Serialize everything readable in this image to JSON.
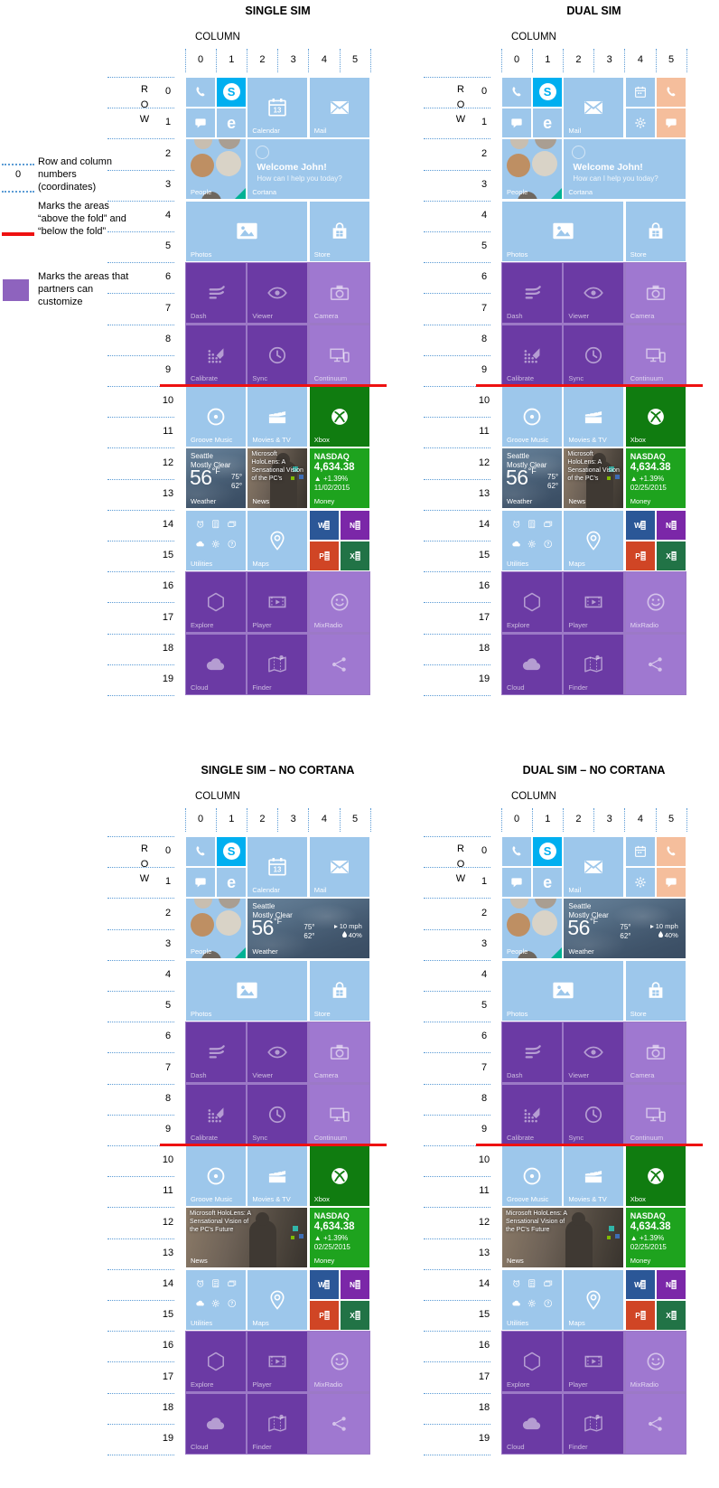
{
  "legend": {
    "coordinate_sample": "0",
    "items": [
      {
        "name": "coordinates",
        "text": "Row and column numbers (coordinates)"
      },
      {
        "name": "fold",
        "text": "Marks the areas “above the fold” and “below the fold”"
      },
      {
        "name": "partner",
        "text": "Marks the areas that partners can customize"
      }
    ]
  },
  "axis": {
    "column_label": "COLUMN",
    "row_label": "ROW",
    "columns": [
      "0",
      "1",
      "2",
      "3",
      "4",
      "5"
    ],
    "rows": [
      "0",
      "1",
      "2",
      "3",
      "4",
      "5",
      "6",
      "7",
      "8",
      "9",
      "10",
      "11",
      "12",
      "13",
      "14",
      "15",
      "16",
      "17",
      "18",
      "19"
    ]
  },
  "fold_after_row": 9,
  "partner_areas": [
    {
      "from_row": 6,
      "to_row": 9
    },
    {
      "from_row": 16,
      "to_row": 19
    }
  ],
  "palette": {
    "tile_blue": "#9DC7EB",
    "skype_blue": "#00AFF0",
    "peach": "#F5BE9C",
    "xbox_green": "#107C10",
    "money_green": "#1EA31E",
    "purple_area": "#9C79C6",
    "purple_tile": "#6B3AA4",
    "purple_tile_light": "#9F78D0",
    "word_blue": "#2B5797",
    "onenote_purple": "#7B27A8",
    "powerpoint_red": "#D04525",
    "excel_green": "#217346",
    "fold_red": "#EE1111",
    "dotted_blue": "#5B9BD5",
    "legend_purple": "#8E63BE"
  },
  "tile_library": {
    "phone": {
      "name": "phone",
      "row": 0,
      "col": 0,
      "rows": 1,
      "cols": 1,
      "color": "tile_blue",
      "icon": "phone"
    },
    "skype": {
      "name": "skype",
      "row": 0,
      "col": 1,
      "rows": 1,
      "cols": 1,
      "color": "skype_blue",
      "kind": "badge",
      "letter": "S"
    },
    "messaging": {
      "name": "messaging",
      "row": 1,
      "col": 0,
      "rows": 1,
      "cols": 1,
      "color": "tile_blue",
      "icon": "message"
    },
    "edge": {
      "name": "edge",
      "row": 1,
      "col": 1,
      "rows": 1,
      "cols": 1,
      "color": "tile_blue",
      "kind": "letter",
      "letter": "e"
    },
    "calendar_lg": {
      "name": "calendar",
      "label": "Calendar",
      "row": 0,
      "col": 2,
      "rows": 2,
      "cols": 2,
      "color": "tile_blue",
      "icon": "calendar",
      "day": "13"
    },
    "mail_lg_right": {
      "name": "mail",
      "label": "Mail",
      "row": 0,
      "col": 4,
      "rows": 2,
      "cols": 2,
      "color": "tile_blue",
      "icon": "mail"
    },
    "mail_lg_mid": {
      "name": "mail",
      "label": "Mail",
      "row": 0,
      "col": 2,
      "rows": 2,
      "cols": 2,
      "color": "tile_blue",
      "icon": "mail"
    },
    "calendar_sm": {
      "name": "calendar-small",
      "row": 0,
      "col": 4,
      "rows": 1,
      "cols": 1,
      "color": "tile_blue",
      "icon": "mini-calendar"
    },
    "settings_sm": {
      "name": "settings",
      "row": 1,
      "col": 4,
      "rows": 1,
      "cols": 1,
      "color": "tile_blue",
      "icon": "gear"
    },
    "phone_sim2": {
      "name": "phone-sim2",
      "row": 0,
      "col": 5,
      "rows": 1,
      "cols": 1,
      "color": "peach",
      "icon": "phone"
    },
    "messaging_sim2": {
      "name": "messaging-sim2",
      "row": 1,
      "col": 5,
      "rows": 1,
      "cols": 1,
      "color": "peach",
      "icon": "message"
    },
    "people": {
      "name": "people",
      "label": "People",
      "kind": "people",
      "row": 2,
      "col": 0,
      "rows": 2,
      "cols": 2,
      "color": "tile_blue"
    },
    "cortana": {
      "name": "cortana",
      "label": "Cortana",
      "kind": "cortana",
      "greeting": "Welcome John!",
      "prompt": "How can I help you today?",
      "row": 2,
      "col": 2,
      "rows": 2,
      "cols": 4,
      "color": "tile_blue"
    },
    "weather_wide": {
      "name": "weather",
      "label": "Weather",
      "kind": "weather",
      "row": 2,
      "col": 2,
      "rows": 2,
      "cols": 4,
      "city": "Seattle",
      "condition": "Mostly Clear",
      "temp": "56",
      "temp_unit": "°F",
      "high": "75°",
      "low": "62°",
      "wind": "10 mph",
      "humidity": "40%"
    },
    "photos": {
      "name": "photos",
      "label": "Photos",
      "row": 4,
      "col": 0,
      "rows": 2,
      "cols": 4,
      "color": "tile_blue",
      "icon": "photos"
    },
    "store": {
      "name": "store",
      "label": "Store",
      "row": 4,
      "col": 4,
      "rows": 2,
      "cols": 2,
      "color": "tile_blue",
      "icon": "store"
    },
    "dash": {
      "name": "dash",
      "label": "Dash",
      "row": 6,
      "col": 0,
      "rows": 2,
      "cols": 2,
      "color": "purple_tile",
      "icon": "dash"
    },
    "viewer": {
      "name": "viewer",
      "label": "Viewer",
      "row": 6,
      "col": 2,
      "rows": 2,
      "cols": 2,
      "color": "purple_tile",
      "icon": "eye"
    },
    "camera": {
      "name": "camera",
      "label": "Camera",
      "row": 6,
      "col": 4,
      "rows": 2,
      "cols": 2,
      "color": "purple_tile_light",
      "icon": "camera"
    },
    "calibrate": {
      "name": "calibrate",
      "label": "Calibrate",
      "row": 8,
      "col": 0,
      "rows": 2,
      "cols": 2,
      "color": "purple_tile",
      "icon": "calibrate"
    },
    "sync": {
      "name": "sync",
      "label": "Sync",
      "row": 8,
      "col": 2,
      "rows": 2,
      "cols": 2,
      "color": "purple_tile",
      "icon": "sync"
    },
    "continuum": {
      "name": "continuum",
      "label": "Continuum",
      "row": 8,
      "col": 4,
      "rows": 2,
      "cols": 2,
      "color": "purple_tile_light",
      "icon": "continuum"
    },
    "groove": {
      "name": "groove-music",
      "label": "Groove Music",
      "row": 10,
      "col": 0,
      "rows": 2,
      "cols": 2,
      "color": "tile_blue",
      "icon": "groove"
    },
    "movies": {
      "name": "movies-tv",
      "label": "Movies & TV",
      "row": 10,
      "col": 2,
      "rows": 2,
      "cols": 2,
      "color": "tile_blue",
      "icon": "movies"
    },
    "xbox": {
      "name": "xbox",
      "label": "Xbox",
      "row": 10,
      "col": 4,
      "rows": 2,
      "cols": 2,
      "color": "xbox_green",
      "icon": "xbox"
    },
    "weather_sq": {
      "name": "weather",
      "label": "Weather",
      "kind": "weather",
      "row": 12,
      "col": 0,
      "rows": 2,
      "cols": 2,
      "city": "Seattle",
      "condition": "Mostly Clear",
      "temp": "56",
      "temp_unit": "°F",
      "high": "75°",
      "low": "62°"
    },
    "news_sq": {
      "name": "news",
      "label": "News",
      "kind": "news",
      "row": 12,
      "col": 2,
      "rows": 2,
      "cols": 2,
      "headline": "Microsoft HoloLens: A Sensational Vision of the PC's"
    },
    "news_wide": {
      "name": "news",
      "label": "News",
      "kind": "news",
      "row": 12,
      "col": 0,
      "rows": 2,
      "cols": 4,
      "headline": "Microsoft HoloLens: A Sensational Vision of the PC's Future"
    },
    "money": {
      "name": "money",
      "label": "Money",
      "kind": "money",
      "row": 12,
      "col": 4,
      "rows": 2,
      "cols": 2,
      "color": "money_green",
      "index_name": "NASDAQ",
      "value": "4,634.38",
      "change": "▲ +1.39%",
      "date": "02/25/2015"
    },
    "utilities": {
      "name": "utilities",
      "label": "Utilities",
      "kind": "utilities",
      "row": 14,
      "col": 0,
      "rows": 2,
      "cols": 2,
      "color": "tile_blue",
      "icons": [
        "alarm",
        "calculator",
        "wallet",
        "cloud-mini",
        "gear",
        "help"
      ]
    },
    "maps": {
      "name": "maps",
      "label": "Maps",
      "row": 14,
      "col": 2,
      "rows": 2,
      "cols": 2,
      "color": "tile_blue",
      "icon": "maps"
    },
    "word": {
      "name": "word",
      "kind": "office",
      "letter": "W",
      "row": 14,
      "col": 4,
      "rows": 1,
      "cols": 1,
      "color": "word_blue"
    },
    "onenote": {
      "name": "onenote",
      "kind": "office",
      "letter": "N",
      "row": 14,
      "col": 5,
      "rows": 1,
      "cols": 1,
      "color": "onenote_purple"
    },
    "powerpoint": {
      "name": "powerpoint",
      "kind": "office",
      "letter": "P",
      "row": 15,
      "col": 4,
      "rows": 1,
      "cols": 1,
      "color": "powerpoint_red"
    },
    "excel": {
      "name": "excel",
      "kind": "office",
      "letter": "X",
      "row": 15,
      "col": 5,
      "rows": 1,
      "cols": 1,
      "color": "excel_green"
    },
    "explore": {
      "name": "explore",
      "label": "Explore",
      "row": 16,
      "col": 0,
      "rows": 2,
      "cols": 2,
      "color": "purple_tile",
      "icon": "cube"
    },
    "player": {
      "name": "player",
      "label": "Player",
      "row": 16,
      "col": 2,
      "rows": 2,
      "cols": 2,
      "color": "purple_tile",
      "icon": "player"
    },
    "mixradio": {
      "name": "mixradio",
      "label": "MixRadio",
      "row": 16,
      "col": 4,
      "rows": 2,
      "cols": 2,
      "color": "purple_tile_light",
      "icon": "smiley"
    },
    "cloud": {
      "name": "cloud",
      "label": "Cloud",
      "row": 18,
      "col": 0,
      "rows": 2,
      "cols": 2,
      "color": "purple_tile",
      "icon": "cloud"
    },
    "finder": {
      "name": "finder",
      "label": "Finder",
      "row": 18,
      "col": 2,
      "rows": 2,
      "cols": 2,
      "color": "purple_tile",
      "icon": "finder"
    },
    "partner_blank": {
      "name": "partner-tile",
      "row": 18,
      "col": 4,
      "rows": 2,
      "cols": 2,
      "color": "purple_tile_light",
      "icon": "share"
    }
  },
  "grids": [
    {
      "title": "SINGLE SIM",
      "tiles": [
        "phone",
        "skype",
        "messaging",
        "edge",
        "calendar_lg",
        "mail_lg_right",
        "people",
        "cortana",
        "photos",
        "store",
        "dash",
        "viewer",
        "camera",
        "calibrate",
        "sync",
        "continuum",
        "groove",
        "movies",
        "xbox",
        "weather_sq",
        "news_sq",
        {
          "ref": "money",
          "date": "11/02/2015"
        },
        "utilities",
        "maps",
        "word",
        "onenote",
        "powerpoint",
        "excel",
        "explore",
        "player",
        "mixradio",
        "cloud",
        "finder",
        "partner_blank"
      ]
    },
    {
      "title": "DUAL SIM",
      "tiles": [
        "phone",
        "skype",
        "messaging",
        "edge",
        "mail_lg_mid",
        "calendar_sm",
        "settings_sm",
        "phone_sim2",
        "messaging_sim2",
        "people",
        "cortana",
        "photos",
        "store",
        "dash",
        "viewer",
        "camera",
        "calibrate",
        "sync",
        "continuum",
        "groove",
        "movies",
        "xbox",
        "weather_sq",
        "news_sq",
        "money",
        "utilities",
        "maps",
        "word",
        "onenote",
        "powerpoint",
        "excel",
        "explore",
        "player",
        "mixradio",
        "cloud",
        "finder",
        "partner_blank"
      ]
    },
    {
      "title": "SINGLE SIM – NO CORTANA",
      "tiles": [
        "phone",
        "skype",
        "messaging",
        "edge",
        "calendar_lg",
        "mail_lg_right",
        "people",
        "weather_wide",
        "photos",
        "store",
        "dash",
        "viewer",
        "camera",
        "calibrate",
        "sync",
        "continuum",
        "groove",
        "movies",
        "xbox",
        "news_wide",
        "money",
        "utilities",
        "maps",
        "word",
        "onenote",
        "powerpoint",
        "excel",
        "explore",
        "player",
        "mixradio",
        "cloud",
        "finder",
        "partner_blank"
      ]
    },
    {
      "title": "DUAL SIM – NO CORTANA",
      "tiles": [
        "phone",
        "skype",
        "messaging",
        "edge",
        "mail_lg_mid",
        "calendar_sm",
        "settings_sm",
        "phone_sim2",
        "messaging_sim2",
        "people",
        "weather_wide",
        "photos",
        "store",
        "dash",
        "viewer",
        "camera",
        "calibrate",
        "sync",
        "continuum",
        "groove",
        "movies",
        "xbox",
        "news_wide",
        "money",
        "utilities",
        "maps",
        "word",
        "onenote",
        "powerpoint",
        "excel",
        "explore",
        "player",
        "mixradio",
        "cloud",
        "finder",
        "partner_blank"
      ]
    }
  ]
}
